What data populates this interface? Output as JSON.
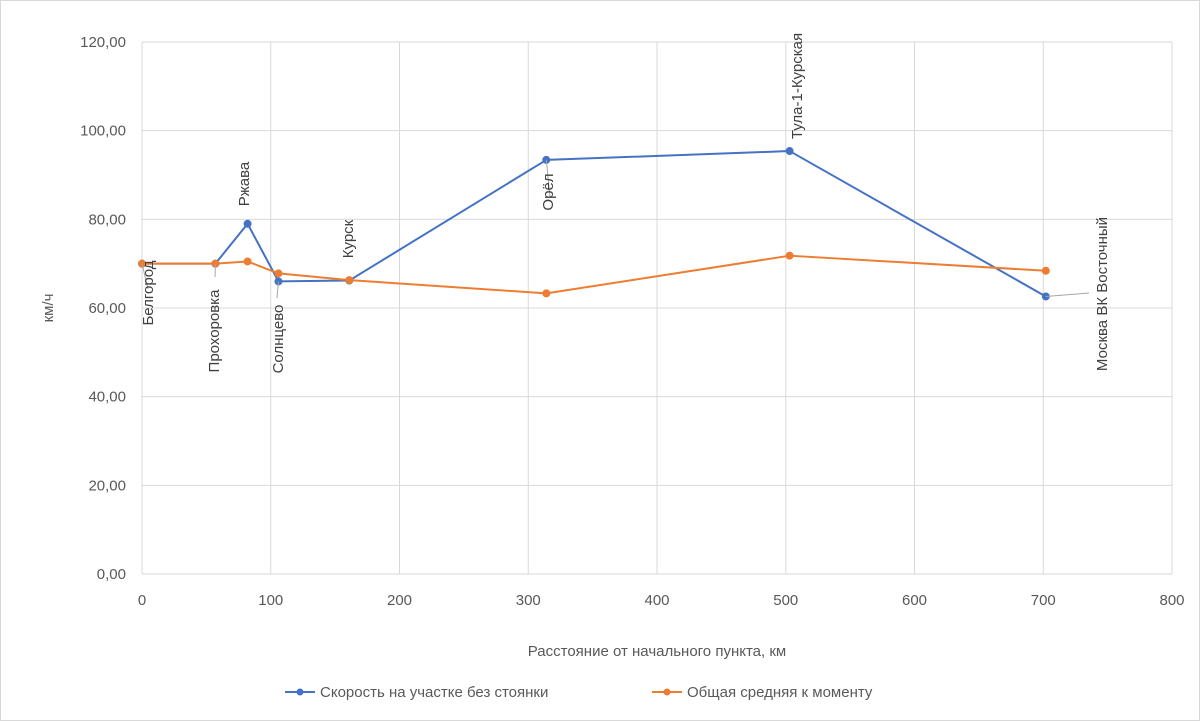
{
  "chart_data": {
    "type": "scatter",
    "title": "",
    "xlabel": "Расстояние от начального пункта, км",
    "ylabel": "км/ч",
    "xlim": [
      0,
      800
    ],
    "ylim": [
      0,
      120
    ],
    "x_ticks": [
      0,
      100,
      200,
      300,
      400,
      500,
      600,
      700,
      800
    ],
    "x_tick_labels": [
      "0",
      "100",
      "200",
      "300",
      "400",
      "500",
      "600",
      "700",
      "800"
    ],
    "y_ticks": [
      0,
      20,
      40,
      60,
      80,
      100,
      120
    ],
    "y_tick_labels": [
      "0,00",
      "20,00",
      "40,00",
      "60,00",
      "80,00",
      "100,00",
      "120,00"
    ],
    "grid": true,
    "legend_position": "bottom",
    "series": [
      {
        "name": "Скорость на участке без стоянки",
        "color": "#4472c4",
        "points": [
          {
            "x": 0,
            "y": 70.0
          },
          {
            "x": 57,
            "y": 70.0
          },
          {
            "x": 82,
            "y": 79.0
          },
          {
            "x": 106,
            "y": 66.0
          },
          {
            "x": 161,
            "y": 66.2
          },
          {
            "x": 314,
            "y": 93.4
          },
          {
            "x": 503,
            "y": 95.4
          },
          {
            "x": 702,
            "y": 62.6
          }
        ]
      },
      {
        "name": "Общая средняя к моменту",
        "color": "#ed7d31",
        "points": [
          {
            "x": 0,
            "y": 70.0
          },
          {
            "x": 57,
            "y": 70.0
          },
          {
            "x": 82,
            "y": 70.5
          },
          {
            "x": 106,
            "y": 67.8
          },
          {
            "x": 161,
            "y": 66.3
          },
          {
            "x": 314,
            "y": 63.3
          },
          {
            "x": 503,
            "y": 71.8
          },
          {
            "x": 702,
            "y": 68.4
          }
        ]
      }
    ],
    "annotations": [
      {
        "text": "Белгород",
        "x": 0,
        "y": 70.0
      },
      {
        "text": "Прохоровка",
        "x": 57,
        "y": 70.0
      },
      {
        "text": "Ржава",
        "x": 82,
        "y": 79.0
      },
      {
        "text": "Солнцево",
        "x": 106,
        "y": 66.0
      },
      {
        "text": "Курск",
        "x": 161,
        "y": 66.2
      },
      {
        "text": "Орёл",
        "x": 314,
        "y": 93.4
      },
      {
        "text": "Тула-1-Курская",
        "x": 503,
        "y": 95.4
      },
      {
        "text": "Москва ВК Восточный",
        "x": 702,
        "y": 62.6
      }
    ]
  }
}
